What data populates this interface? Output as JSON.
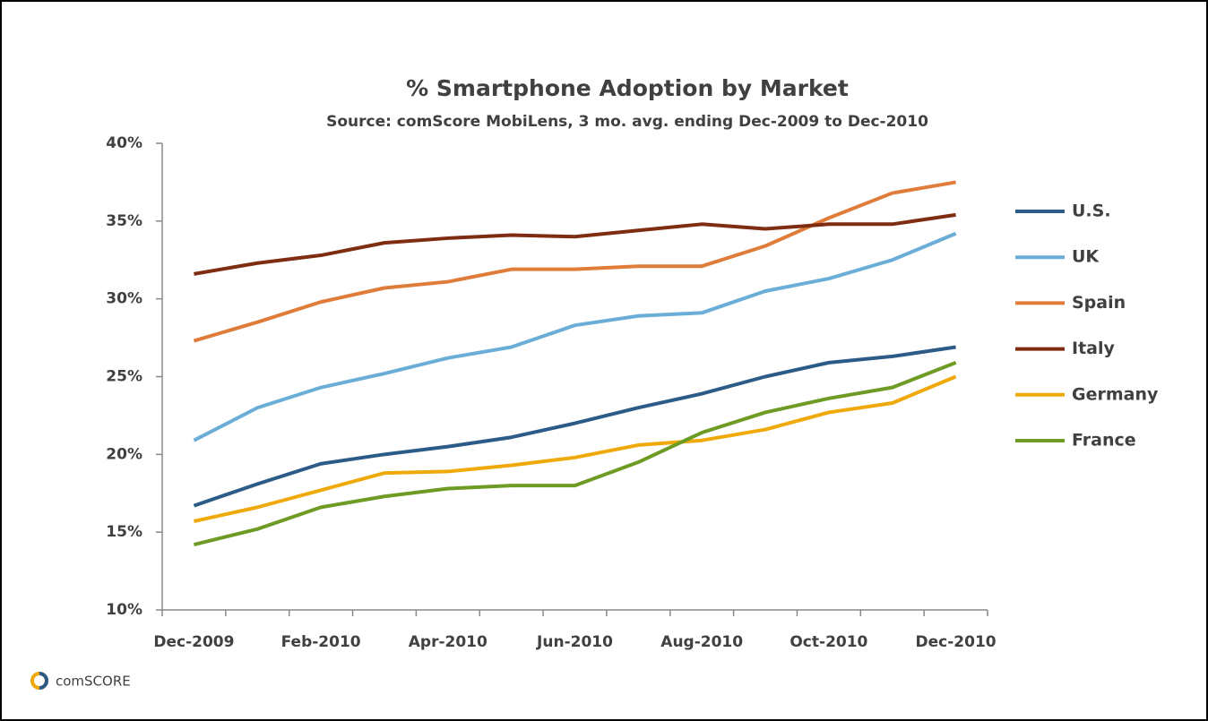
{
  "chart_data": {
    "type": "line",
    "title": "% Smartphone Adoption by  Market",
    "subtitle": "Source: comScore MobiLens, 3 mo. avg. ending  Dec-2009 to Dec-2010",
    "logo_text": "comSCORE",
    "categories": [
      "Dec-2009",
      null,
      "Feb-2010",
      null,
      "Apr-2010",
      null,
      "Jun-2010",
      null,
      "Aug-2010",
      null,
      "Oct-2010",
      null,
      "Dec-2010"
    ],
    "ylim": [
      10,
      40
    ],
    "yticks": [
      {
        "value": 10,
        "label": "10%"
      },
      {
        "value": 15,
        "label": "15%"
      },
      {
        "value": 20,
        "label": "20%"
      },
      {
        "value": 25,
        "label": "25%"
      },
      {
        "value": 30,
        "label": "30%"
      },
      {
        "value": 35,
        "label": "35%"
      },
      {
        "value": 40,
        "label": "40%"
      }
    ],
    "legend": "right",
    "series": [
      {
        "name": "U.S.",
        "color": "#2b5b86",
        "values": [
          16.7,
          18.1,
          19.4,
          20.0,
          20.5,
          21.1,
          22.0,
          23.0,
          23.9,
          25.0,
          25.9,
          26.3,
          26.9
        ]
      },
      {
        "name": "UK",
        "color": "#6aaed8",
        "values": [
          20.9,
          23.0,
          24.3,
          25.2,
          26.2,
          26.9,
          28.3,
          28.9,
          29.1,
          30.5,
          31.3,
          32.5,
          34.2
        ]
      },
      {
        "name": "Spain",
        "color": "#e07c3a",
        "values": [
          27.3,
          28.5,
          29.8,
          30.7,
          31.1,
          31.9,
          31.9,
          32.1,
          32.1,
          33.4,
          35.2,
          36.8,
          37.5
        ]
      },
      {
        "name": "Italy",
        "color": "#7e2c12",
        "values": [
          31.6,
          32.3,
          32.8,
          33.6,
          33.9,
          34.1,
          34.0,
          34.4,
          34.8,
          34.5,
          34.8,
          34.8,
          35.4
        ]
      },
      {
        "name": "Germany",
        "color": "#f0a90a",
        "values": [
          15.7,
          16.6,
          17.7,
          18.8,
          18.9,
          19.3,
          19.8,
          20.6,
          20.9,
          21.6,
          22.7,
          23.3,
          25.0
        ]
      },
      {
        "name": "France",
        "color": "#6d9b24",
        "values": [
          14.2,
          15.2,
          16.6,
          17.3,
          17.8,
          18.0,
          18.0,
          19.5,
          21.4,
          22.7,
          23.6,
          24.3,
          25.9
        ]
      }
    ]
  }
}
